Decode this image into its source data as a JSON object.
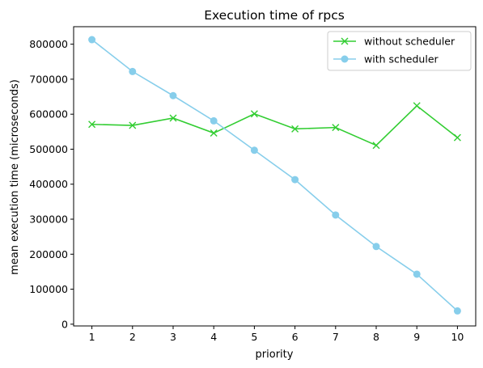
{
  "chart_data": {
    "type": "line",
    "title": "Execution time of rpcs",
    "xlabel": "priority",
    "ylabel": "mean execution time (microseconds)",
    "x": [
      1,
      2,
      3,
      4,
      5,
      6,
      7,
      8,
      9,
      10
    ],
    "xlim": [
      0.55,
      10.45
    ],
    "ylim": [
      -5000,
      850000
    ],
    "xticks": [
      1,
      2,
      3,
      4,
      5,
      6,
      7,
      8,
      9,
      10
    ],
    "yticks": [
      0,
      100000,
      200000,
      300000,
      400000,
      500000,
      600000,
      700000,
      800000
    ],
    "grid": false,
    "legend_position": "top-right",
    "series": [
      {
        "name": "without scheduler",
        "color": "#32cd32",
        "marker": "x",
        "values": [
          571000,
          568000,
          589000,
          546000,
          601000,
          558000,
          562000,
          511000,
          624000,
          533000
        ]
      },
      {
        "name": "with scheduler",
        "color": "#87ceeb",
        "marker": "o",
        "values": [
          813000,
          722000,
          653000,
          581000,
          497000,
          413000,
          312000,
          222000,
          143000,
          38000
        ]
      }
    ]
  }
}
